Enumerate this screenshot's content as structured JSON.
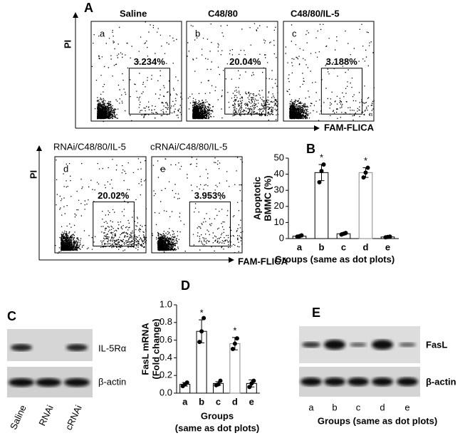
{
  "flow": {
    "panel_label": "A",
    "y_label": "PI",
    "x_label": "FAM-FLICA",
    "plots": [
      {
        "title": "Saline",
        "letter": "a",
        "percent": "3.234%"
      },
      {
        "title": "C48/80",
        "letter": "b",
        "percent": "20.04%"
      },
      {
        "title": "C48/80/IL-5",
        "letter": "c",
        "percent": "3.188%"
      },
      {
        "title": "RNAi/C48/80/IL-5",
        "letter": "d",
        "percent": "20.02%"
      },
      {
        "title": "cRNAi/C48/80/IL-5",
        "letter": "e",
        "percent": "3.953%"
      }
    ]
  },
  "chart_data": [
    {
      "type": "bar",
      "panel_label": "B",
      "y_label": [
        "Apoptotic",
        "BMMC (%)"
      ],
      "x_label": [
        "Groups (same as dot plots)"
      ],
      "categories": [
        "a",
        "b",
        "c",
        "d",
        "e"
      ],
      "values": [
        1.5,
        41,
        3,
        41,
        1
      ],
      "errors": [
        0.5,
        5,
        0.7,
        3,
        0.3
      ],
      "points": [
        [
          1.2,
          1.5,
          2
        ],
        [
          35,
          42,
          46
        ],
        [
          2.5,
          3,
          3.5
        ],
        [
          38,
          41,
          44
        ],
        [
          0.8,
          1,
          1.2
        ]
      ],
      "colors": [
        "#000000",
        "#000000",
        "#000000",
        "#888888",
        "#000000"
      ],
      "annotations": [
        {
          "index": 1,
          "text": "*"
        },
        {
          "index": 3,
          "text": "*"
        }
      ],
      "ylim": [
        0,
        50
      ],
      "yticks": [
        0,
        10,
        20,
        30,
        40,
        50
      ]
    },
    {
      "type": "bar",
      "panel_label": "D",
      "y_label": [
        "FasL mRNA",
        "(Fold change)"
      ],
      "x_label": [
        "Groups",
        "(same as dot plots)"
      ],
      "categories": [
        "a",
        "b",
        "c",
        "d",
        "e"
      ],
      "values": [
        0.1,
        0.7,
        0.11,
        0.56,
        0.11
      ],
      "errors": [
        0.02,
        0.13,
        0.02,
        0.07,
        0.04
      ],
      "points": [
        [
          0.08,
          0.1,
          0.12
        ],
        [
          0.58,
          0.7,
          0.85
        ],
        [
          0.09,
          0.1,
          0.14
        ],
        [
          0.5,
          0.56,
          0.62
        ],
        [
          0.07,
          0.11,
          0.14
        ]
      ],
      "colors": [
        "#000000",
        "#000000",
        "#000000",
        "#888888",
        "#000000"
      ],
      "annotations": [
        {
          "index": 1,
          "text": "*"
        },
        {
          "index": 3,
          "text": "*"
        }
      ],
      "ylim": [
        0,
        1
      ],
      "yticks": [
        {
          "value": 0,
          "label": "0.0"
        },
        0.2,
        0.4,
        0.6,
        0.8,
        {
          "value": 1,
          "label": "1.0"
        }
      ]
    }
  ],
  "blot_c": {
    "panel_label": "C",
    "bands": [
      "IL-5Rα",
      "β-actin"
    ],
    "lanes": [
      "Saline",
      "RNAi",
      "cRNAi"
    ]
  },
  "blot_e": {
    "panel_label": "E",
    "bands": [
      "FasL",
      "β-actin"
    ],
    "lanes": [
      "a",
      "b",
      "c",
      "d",
      "e"
    ],
    "x_label": "Groups (same as dot plots)"
  }
}
